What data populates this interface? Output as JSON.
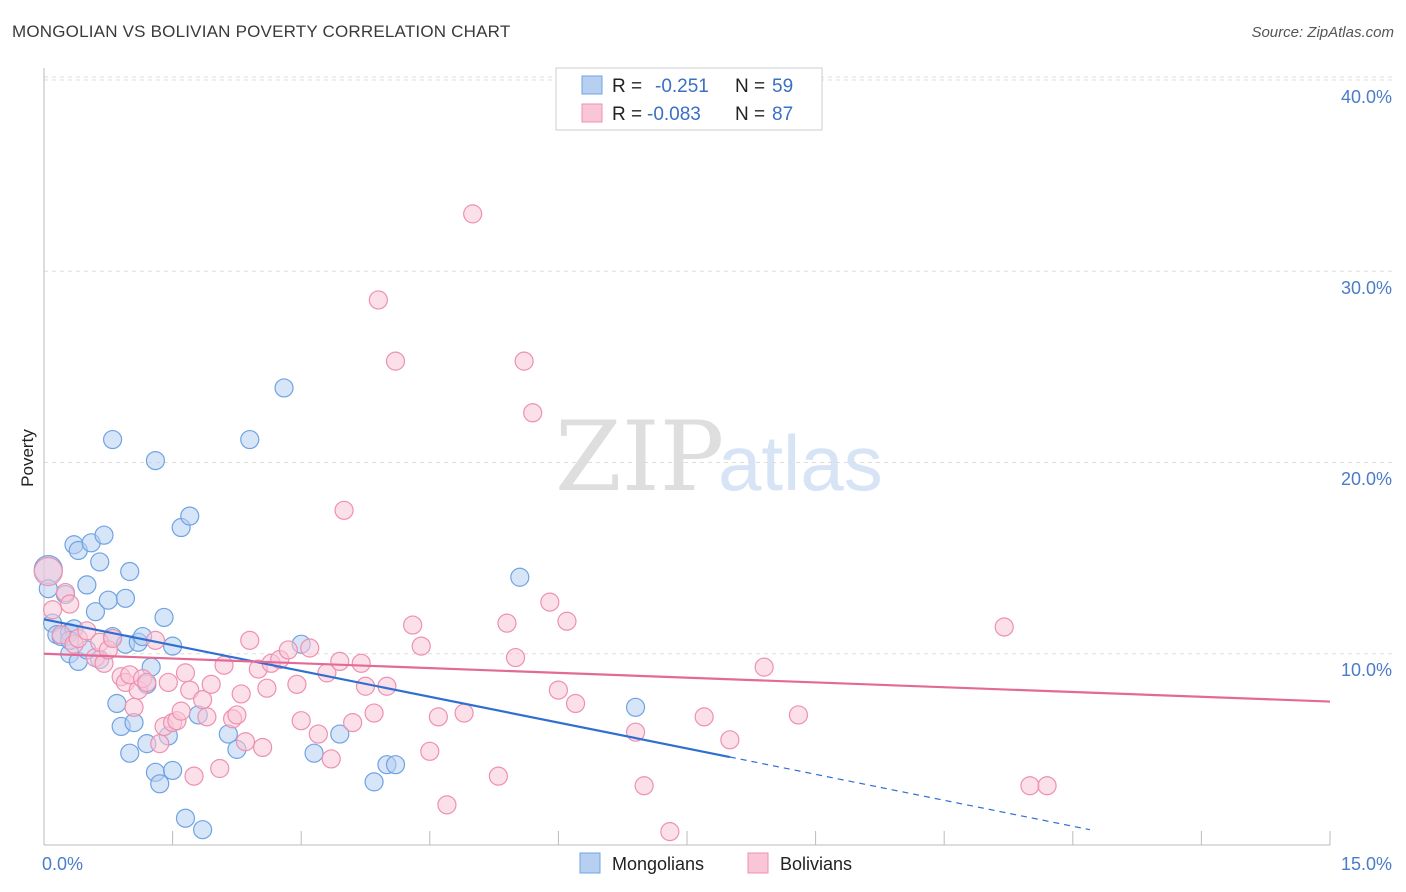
{
  "header": {
    "title": "MONGOLIAN VS BOLIVIAN POVERTY CORRELATION CHART",
    "source": "Source: ZipAtlas.com"
  },
  "watermark": {
    "part1": "ZIP",
    "part2": "atlas"
  },
  "legend": {
    "rows": [
      {
        "r_label": "R =",
        "r_value": "-0.251",
        "n_label": "N =",
        "n_value": "59",
        "color": "#a9c8f0"
      },
      {
        "r_label": "R =",
        "r_value": "-0.083",
        "n_label": "N =",
        "n_value": "87",
        "color": "#f8b9cf"
      }
    ]
  },
  "chart_data": {
    "type": "scatter",
    "title": "MONGOLIAN VS BOLIVIAN POVERTY CORRELATION CHART",
    "xlabel": "",
    "ylabel": "Poverty",
    "xlim": [
      0,
      15
    ],
    "ylim": [
      0,
      40
    ],
    "x_tick_labels": [
      "0.0%",
      "15.0%"
    ],
    "y_ticks": [
      10,
      20,
      30,
      40
    ],
    "y_tick_labels": [
      "10.0%",
      "20.0%",
      "30.0%",
      "40.0%"
    ],
    "grid": true,
    "legend_position": "top-center",
    "series": [
      {
        "name": "Mongolians",
        "color": "#6fa3e2",
        "fill": "#b7d0f2",
        "line_color": "#2f6fd0",
        "trend": {
          "x0": 0,
          "y0": 11.8,
          "x1": 8.0,
          "y1": 4.6,
          "dash_x1": 12.2,
          "dash_y1": 0.8
        },
        "points": [
          [
            0.05,
            14.4
          ],
          [
            0.05,
            13.4
          ],
          [
            0.1,
            11.6
          ],
          [
            0.15,
            11.0
          ],
          [
            0.2,
            10.9
          ],
          [
            0.25,
            13.1
          ],
          [
            0.3,
            11.1
          ],
          [
            0.3,
            10.0
          ],
          [
            0.35,
            11.3
          ],
          [
            0.35,
            15.7
          ],
          [
            0.4,
            15.4
          ],
          [
            0.4,
            9.6
          ],
          [
            0.5,
            13.6
          ],
          [
            0.5,
            10.2
          ],
          [
            0.55,
            15.8
          ],
          [
            0.6,
            12.2
          ],
          [
            0.65,
            9.7
          ],
          [
            0.65,
            14.8
          ],
          [
            0.7,
            16.2
          ],
          [
            0.75,
            12.8
          ],
          [
            0.8,
            21.2
          ],
          [
            0.8,
            10.9
          ],
          [
            0.85,
            7.4
          ],
          [
            0.9,
            6.2
          ],
          [
            0.95,
            12.9
          ],
          [
            0.95,
            10.5
          ],
          [
            1.0,
            14.3
          ],
          [
            1.0,
            4.8
          ],
          [
            1.05,
            6.4
          ],
          [
            1.1,
            10.6
          ],
          [
            1.15,
            10.9
          ],
          [
            1.2,
            5.3
          ],
          [
            1.2,
            8.4
          ],
          [
            1.25,
            9.3
          ],
          [
            1.3,
            20.1
          ],
          [
            1.3,
            3.8
          ],
          [
            1.35,
            3.2
          ],
          [
            1.4,
            11.9
          ],
          [
            1.45,
            5.7
          ],
          [
            1.5,
            10.4
          ],
          [
            1.5,
            3.9
          ],
          [
            1.6,
            16.6
          ],
          [
            1.65,
            1.4
          ],
          [
            1.7,
            17.2
          ],
          [
            1.8,
            6.8
          ],
          [
            1.85,
            0.8
          ],
          [
            2.15,
            5.8
          ],
          [
            2.25,
            5.0
          ],
          [
            2.4,
            21.2
          ],
          [
            2.8,
            23.9
          ],
          [
            3.0,
            10.5
          ],
          [
            3.15,
            4.8
          ],
          [
            3.45,
            5.8
          ],
          [
            3.85,
            3.3
          ],
          [
            4.0,
            4.2
          ],
          [
            4.1,
            4.2
          ],
          [
            5.55,
            14.0
          ],
          [
            6.9,
            7.2
          ],
          [
            0.3,
            10.7
          ]
        ]
      },
      {
        "name": "Bolivians",
        "color": "#ee90b0",
        "fill": "#f9c6d7",
        "line_color": "#e36a97",
        "trend": {
          "x0": 0,
          "y0": 10.0,
          "x1": 15.0,
          "y1": 7.5
        },
        "points": [
          [
            0.05,
            14.3
          ],
          [
            0.1,
            12.3
          ],
          [
            0.2,
            11.0
          ],
          [
            0.25,
            13.2
          ],
          [
            0.3,
            12.6
          ],
          [
            0.35,
            10.5
          ],
          [
            0.4,
            10.8
          ],
          [
            0.5,
            11.2
          ],
          [
            0.6,
            9.8
          ],
          [
            0.65,
            10.6
          ],
          [
            0.7,
            9.5
          ],
          [
            0.75,
            10.2
          ],
          [
            0.8,
            10.8
          ],
          [
            0.9,
            8.8
          ],
          [
            0.95,
            8.5
          ],
          [
            1.0,
            8.9
          ],
          [
            1.05,
            7.2
          ],
          [
            1.1,
            8.1
          ],
          [
            1.15,
            8.7
          ],
          [
            1.2,
            8.5
          ],
          [
            1.3,
            10.7
          ],
          [
            1.35,
            5.3
          ],
          [
            1.4,
            6.2
          ],
          [
            1.45,
            8.5
          ],
          [
            1.5,
            6.4
          ],
          [
            1.55,
            6.5
          ],
          [
            1.6,
            7.0
          ],
          [
            1.65,
            9.0
          ],
          [
            1.7,
            8.1
          ],
          [
            1.75,
            3.6
          ],
          [
            1.85,
            7.6
          ],
          [
            1.9,
            6.7
          ],
          [
            1.95,
            8.4
          ],
          [
            2.05,
            4.0
          ],
          [
            2.1,
            9.4
          ],
          [
            2.2,
            6.6
          ],
          [
            2.25,
            6.8
          ],
          [
            2.3,
            7.9
          ],
          [
            2.35,
            5.4
          ],
          [
            2.4,
            10.7
          ],
          [
            2.5,
            9.2
          ],
          [
            2.55,
            5.1
          ],
          [
            2.6,
            8.2
          ],
          [
            2.65,
            9.5
          ],
          [
            2.75,
            9.7
          ],
          [
            2.85,
            10.2
          ],
          [
            2.95,
            8.4
          ],
          [
            3.0,
            6.5
          ],
          [
            3.1,
            10.3
          ],
          [
            3.2,
            5.8
          ],
          [
            3.3,
            9.0
          ],
          [
            3.35,
            4.5
          ],
          [
            3.45,
            9.6
          ],
          [
            3.5,
            17.5
          ],
          [
            3.6,
            6.4
          ],
          [
            3.7,
            9.5
          ],
          [
            3.75,
            8.3
          ],
          [
            3.85,
            6.9
          ],
          [
            3.9,
            28.5
          ],
          [
            4.0,
            8.3
          ],
          [
            4.1,
            25.3
          ],
          [
            4.3,
            11.5
          ],
          [
            4.4,
            10.4
          ],
          [
            4.5,
            4.9
          ],
          [
            4.6,
            6.7
          ],
          [
            4.7,
            2.1
          ],
          [
            4.9,
            6.9
          ],
          [
            5.0,
            33.0
          ],
          [
            5.3,
            3.6
          ],
          [
            5.4,
            11.6
          ],
          [
            5.5,
            9.8
          ],
          [
            5.6,
            25.3
          ],
          [
            5.7,
            22.6
          ],
          [
            5.9,
            12.7
          ],
          [
            6.0,
            8.1
          ],
          [
            6.1,
            11.7
          ],
          [
            6.2,
            7.4
          ],
          [
            6.9,
            5.9
          ],
          [
            7.0,
            3.1
          ],
          [
            7.3,
            0.7
          ],
          [
            7.7,
            6.7
          ],
          [
            8.0,
            5.5
          ],
          [
            8.4,
            9.3
          ],
          [
            8.8,
            6.8
          ],
          [
            11.2,
            11.4
          ],
          [
            11.5,
            3.1
          ],
          [
            11.7,
            3.1
          ]
        ]
      }
    ]
  },
  "bottom_legend": {
    "items": [
      {
        "label": "Mongolians",
        "color": "#a9c8f0"
      },
      {
        "label": "Bolivians",
        "color": "#f8b9cf"
      }
    ]
  }
}
